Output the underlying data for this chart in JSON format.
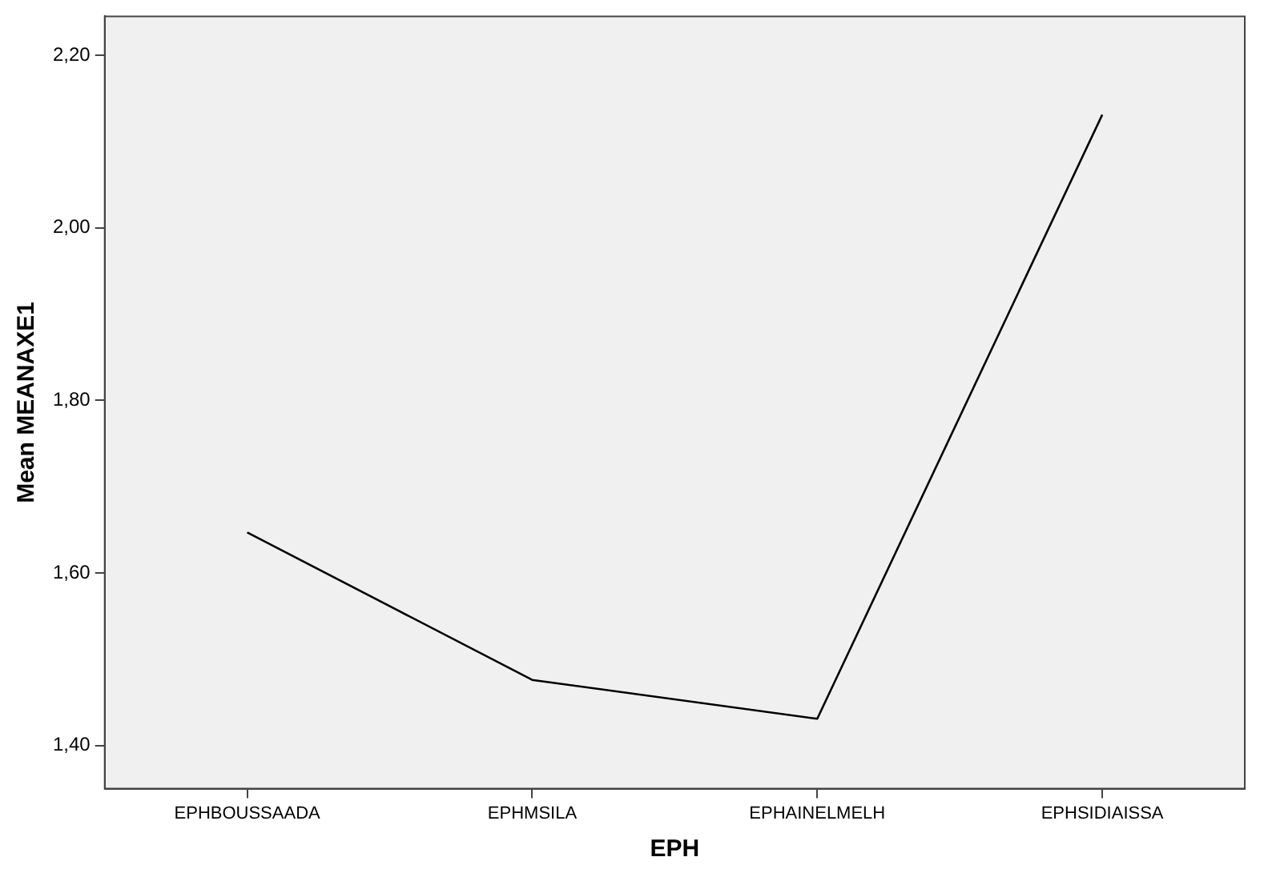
{
  "chart_data": {
    "type": "line",
    "xlabel": "EPH",
    "ylabel": "Mean MEANAXE1",
    "categories": [
      "EPHBOUSSAADA",
      "EPHMSILA",
      "EPHAINELMELH",
      "EPHSIDIAISSA"
    ],
    "series": [
      {
        "color": "#000000",
        "values": [
          1.647,
          1.476,
          1.431,
          2.131
        ]
      }
    ],
    "ylim": [
      1.35,
      2.245
    ],
    "yticks": [
      {
        "value": 1.4,
        "label": "1,40"
      },
      {
        "value": 1.6,
        "label": "1,60"
      },
      {
        "value": 1.8,
        "label": "1,80"
      },
      {
        "value": 2.0,
        "label": "2,00"
      },
      {
        "value": 2.2,
        "label": "2,20"
      }
    ],
    "grid": false,
    "legend": false,
    "marker": "none",
    "line_style": "solid"
  }
}
